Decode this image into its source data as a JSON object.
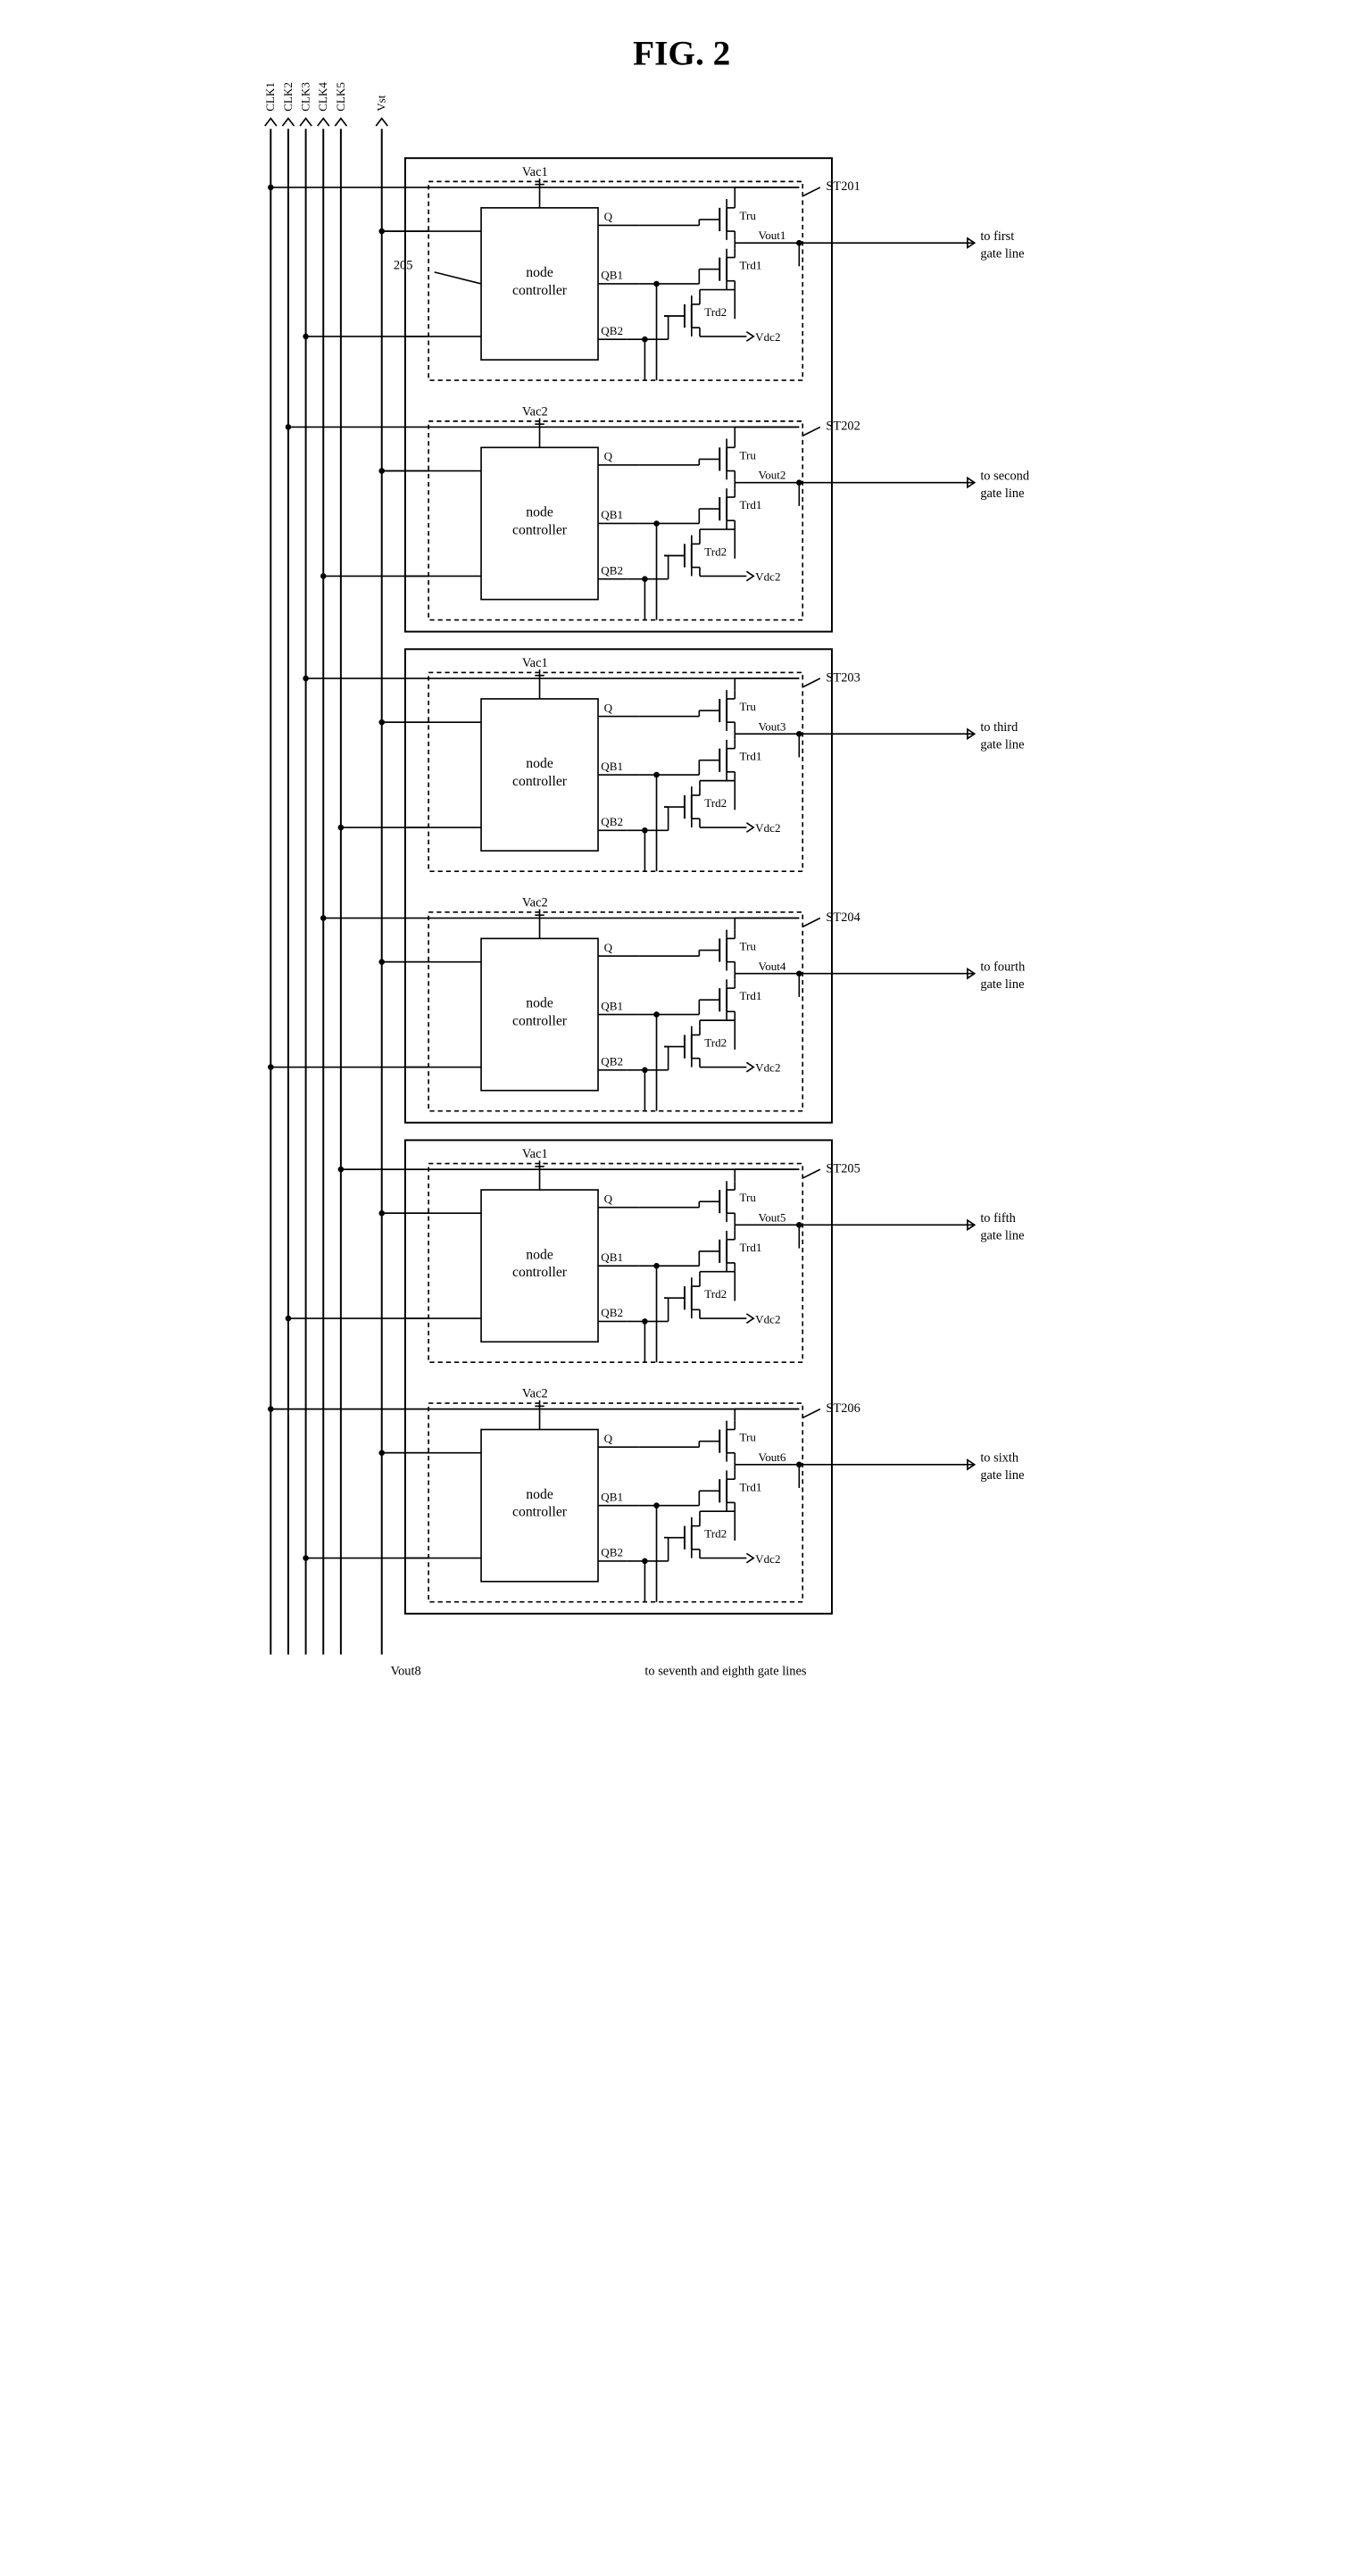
{
  "figure": {
    "title": "FIG. 2",
    "title_fontsize": 36,
    "clocks": [
      "CLK1",
      "CLK2",
      "CLK3",
      "CLK4",
      "CLK5"
    ],
    "vst_label": "Vst",
    "node_controller_label": "node controller",
    "node_controller_ref": "205",
    "vout8_label": "Vout8",
    "bottom_note": "to seventh and eighth gate lines",
    "stages": [
      {
        "id": "ST201",
        "vac": "Vac1",
        "q": "Q",
        "qb1": "QB1",
        "qb2": "QB2",
        "tru": "Tru",
        "trd1": "Trd1",
        "trd2": "Trd2",
        "vdc2": "Vdc2",
        "vout": "Vout1",
        "gate_line": "to first gate line"
      },
      {
        "id": "ST202",
        "vac": "Vac2",
        "q": "Q",
        "qb1": "QB1",
        "qb2": "QB2",
        "tru": "Tru",
        "trd1": "Trd1",
        "trd2": "Trd2",
        "vdc2": "Vdc2",
        "vout": "Vout2",
        "gate_line": "to second gate line"
      },
      {
        "id": "ST203",
        "vac": "Vac1",
        "q": "Q",
        "qb1": "QB1",
        "qb2": "QB2",
        "tru": "Tru",
        "trd1": "Trd1",
        "trd2": "Trd2",
        "vdc2": "Vdc2",
        "vout": "Vout3",
        "gate_line": "to third gate line"
      },
      {
        "id": "ST204",
        "vac": "Vac2",
        "q": "Q",
        "qb1": "QB1",
        "qb2": "QB2",
        "tru": "Tru",
        "trd1": "Trd1",
        "trd2": "Trd2",
        "vdc2": "Vdc2",
        "vout": "Vout4",
        "gate_line": "to fourth gate line"
      },
      {
        "id": "ST205",
        "vac": "Vac1",
        "q": "Q",
        "qb1": "QB1",
        "qb2": "QB2",
        "tru": "Tru",
        "trd1": "Trd1",
        "trd2": "Trd2",
        "vdc2": "Vdc2",
        "vout": "Vout5",
        "gate_line": "to fifth gate line"
      },
      {
        "id": "ST206",
        "vac": "Vac2",
        "q": "Q",
        "qb1": "QB1",
        "qb2": "QB2",
        "tru": "Tru",
        "trd1": "Trd1",
        "trd2": "Trd2",
        "vdc2": "Vdc2",
        "vout": "Vout6",
        "gate_line": "to sixth gate line"
      }
    ],
    "style": {
      "stroke": "#000000",
      "stroke_width": 2.5,
      "stroke_width_thick": 3,
      "dash": "8,6",
      "background": "#ffffff",
      "label_fontsize": 22,
      "clk_fontsize": 20,
      "small_fontsize": 20,
      "stage_height": 280,
      "group_gap": 40
    }
  }
}
